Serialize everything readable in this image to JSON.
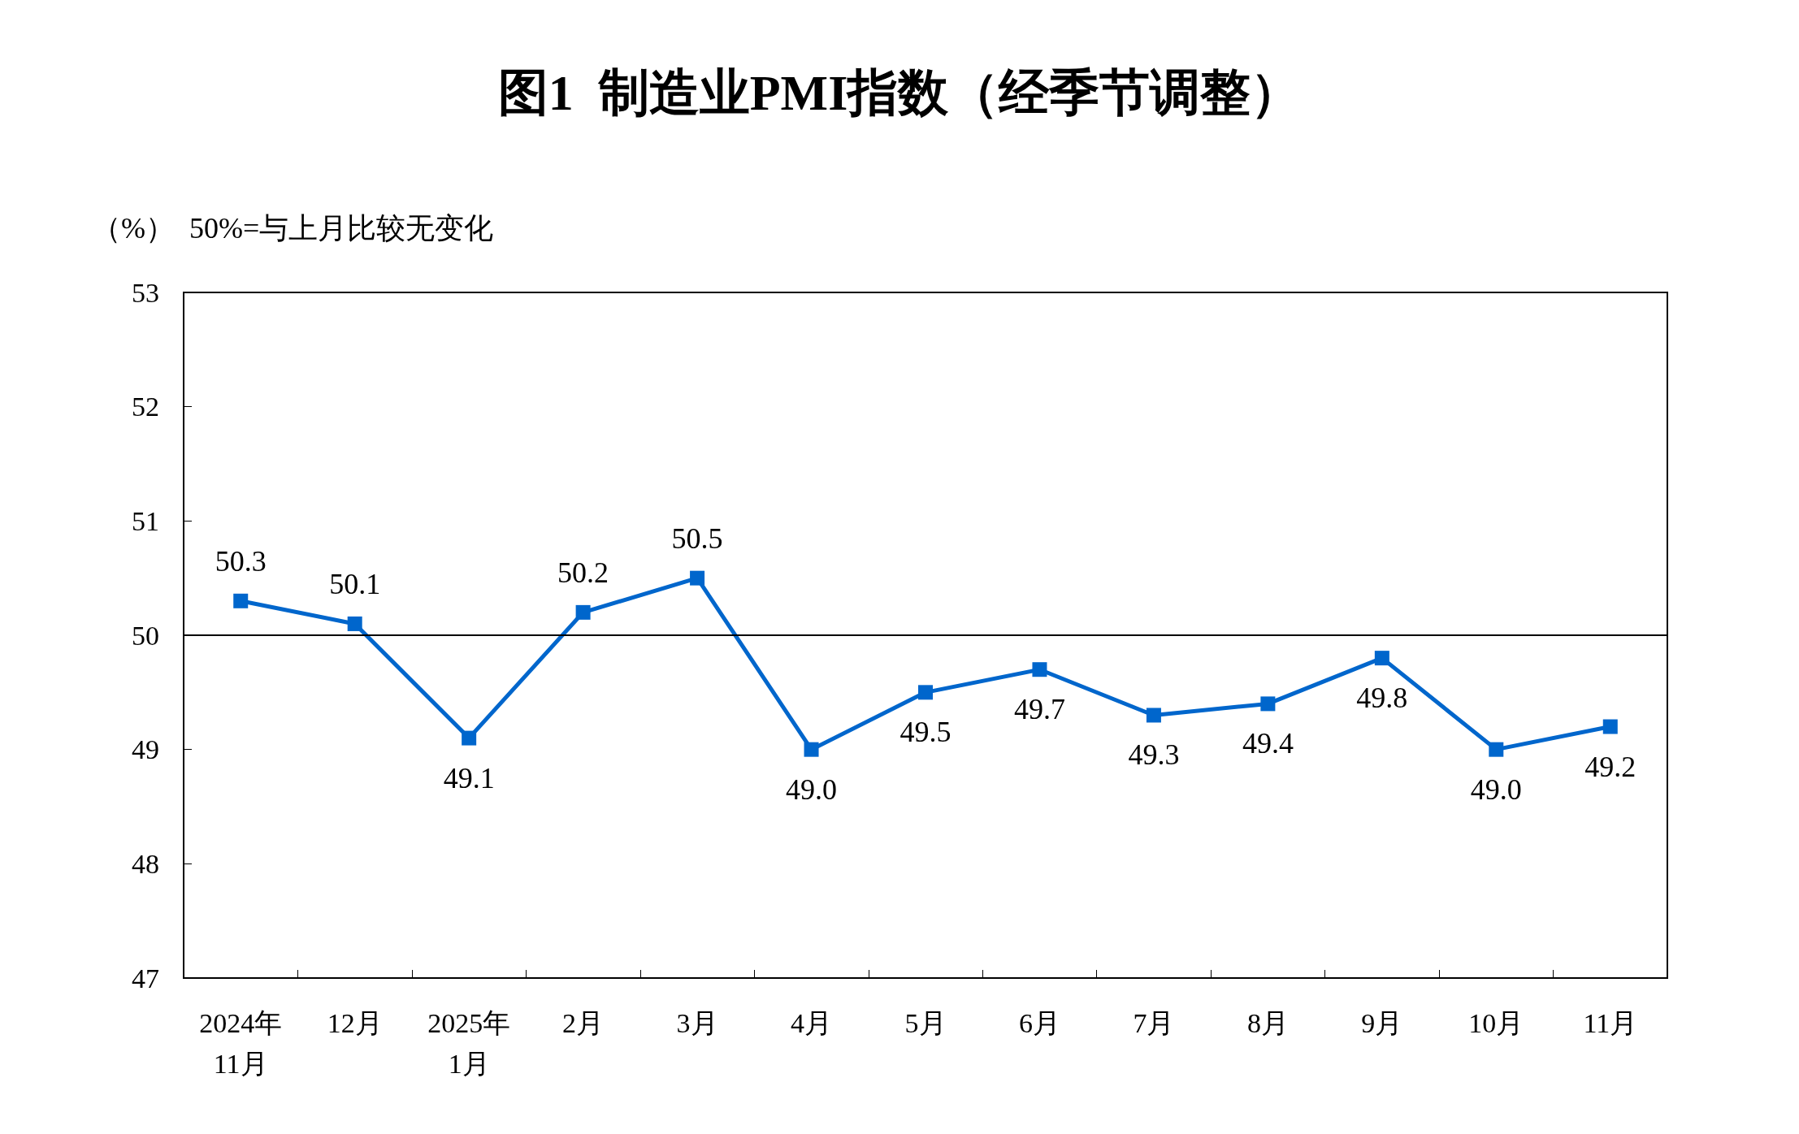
{
  "chart_data": {
    "type": "line",
    "title": "图1  制造业PMI指数（经季节调整）",
    "ylabel": "（%）",
    "annotations": [
      "50%=与上月比较无变化"
    ],
    "categories": [
      "2024年\n11月",
      "12月",
      "2025年\n1月",
      "2月",
      "3月",
      "4月",
      "5月",
      "6月",
      "7月",
      "8月",
      "9月",
      "10月",
      "11月"
    ],
    "series": [
      {
        "color": "#0066cc",
        "values": [
          50.3,
          50.1,
          49.1,
          50.2,
          50.5,
          49.0,
          49.5,
          49.7,
          49.3,
          49.4,
          49.8,
          49.0,
          49.2
        ],
        "value_labels": [
          "50.3",
          "50.1",
          "49.1",
          "50.2",
          "50.5",
          "49.0",
          "49.5",
          "49.7",
          "49.3",
          "49.4",
          "49.8",
          "49.0",
          "49.2"
        ]
      }
    ],
    "ylim": [
      47,
      53
    ],
    "yticks": [
      47,
      48,
      49,
      50,
      51,
      52,
      53
    ],
    "ref_lines": [
      {
        "axis": "y",
        "value": 50,
        "color": "#000000"
      }
    ],
    "grid": false,
    "marker": "square",
    "line_style": "solid"
  }
}
